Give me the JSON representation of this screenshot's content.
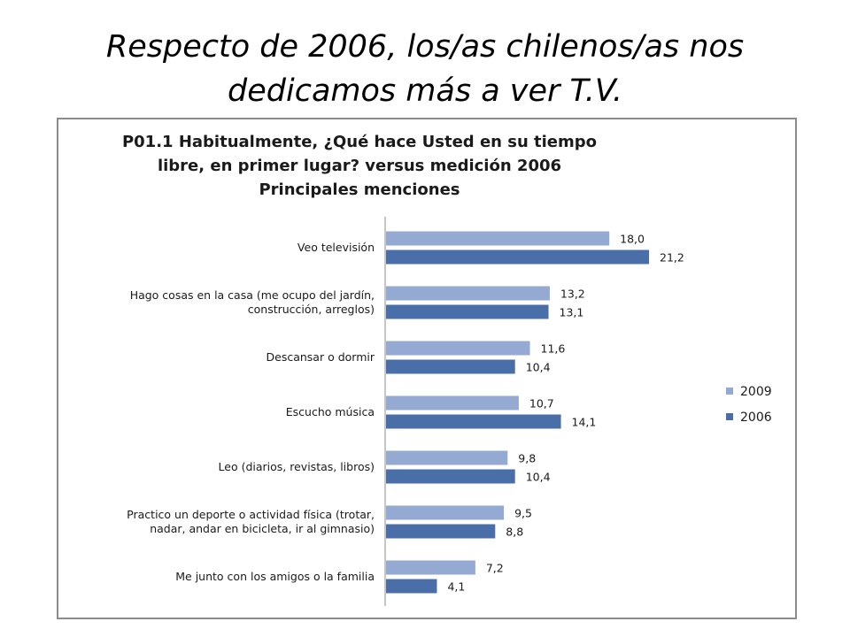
{
  "slide": {
    "title_lines": [
      "Respecto de 2006, los/as chilenos/as nos",
      "dedicamos más a ver T.V."
    ]
  },
  "chart_data": {
    "type": "bar",
    "orientation": "horizontal",
    "title_lines": [
      "P01.1 Habitualmente, ¿Qué hace Usted en su tiempo",
      "libre, en primer lugar? versus medición 2006",
      "Principales menciones"
    ],
    "categories": [
      [
        "Veo televisión"
      ],
      [
        "Hago cosas en la casa (me ocupo del jardín,",
        "construcción, arreglos)"
      ],
      [
        "Descansar o dormir"
      ],
      [
        "Escucho música"
      ],
      [
        "Leo (diarios, revistas, libros)"
      ],
      [
        "Practico un deporte o actividad física (trotar,",
        "nadar, andar en bicicleta, ir al gimnasio)"
      ],
      [
        "Me junto con los amigos o la familia"
      ]
    ],
    "series": [
      {
        "name": "2009",
        "color": "#95aad2",
        "values": [
          18.0,
          13.2,
          11.6,
          10.7,
          9.8,
          9.5,
          7.2
        ],
        "labels": [
          "18,0",
          "13,2",
          "11,6",
          "10,7",
          "9,8",
          "9,5",
          "7,2"
        ]
      },
      {
        "name": "2006",
        "color": "#4a6fa8",
        "values": [
          21.2,
          13.1,
          10.4,
          14.1,
          10.4,
          8.8,
          4.1
        ],
        "labels": [
          "21,2",
          "13,1",
          "10,4",
          "14,1",
          "10,4",
          "8,8",
          "4,1"
        ]
      }
    ],
    "xlim": [
      0,
      21.2
    ],
    "grid": false,
    "legend_position": "right"
  }
}
